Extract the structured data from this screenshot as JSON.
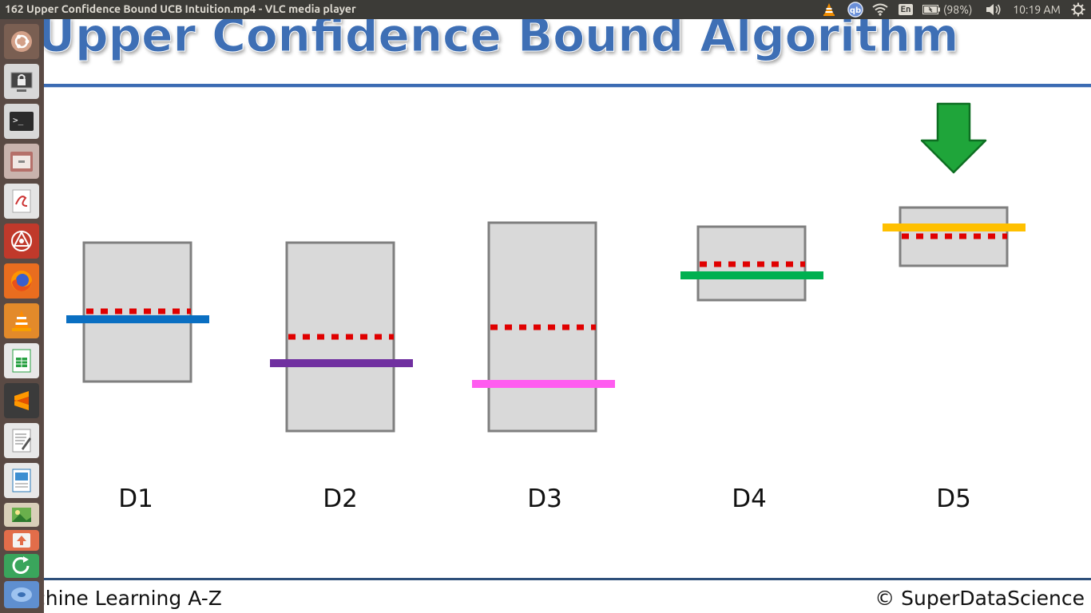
{
  "window": {
    "title": "162 Upper Confidence Bound UCB Intuition.mp4 - VLC media player"
  },
  "top_panel": {
    "keyboard_layout": "En",
    "battery": "(98%)",
    "time": "10:19 AM"
  },
  "launcher": {
    "icons": [
      "ubuntu-dash-icon",
      "lock-screen-icon",
      "terminal-icon",
      "files-icon",
      "evince-icon",
      "scrum-icon",
      "firefox-icon",
      "vlc-icon",
      "spreadsheet-icon",
      "sublime-text-icon",
      "text-editor-icon",
      "document-viewer-icon",
      "image-viewer-icon",
      "software-updater-icon"
    ]
  },
  "slide": {
    "title": "Upper Confidence Bound Algorithm",
    "footer_left": "chine Learning A-Z",
    "footer_right": "© SuperDataScience",
    "colors": {
      "title": "#3e6fb5",
      "box_fill": "#d9d9d9",
      "box_stroke": "#7f7f7f",
      "dotted": "#e00000",
      "arrow": "#1fa53a"
    },
    "bandits": [
      {
        "label": "D1",
        "line_color": "#0a6fc2"
      },
      {
        "label": "D2",
        "line_color": "#7030a0"
      },
      {
        "label": "D3",
        "line_color": "#ff5cf0"
      },
      {
        "label": "D4",
        "line_color": "#00b050"
      },
      {
        "label": "D5",
        "line_color": "#ffc000"
      }
    ],
    "selected_bandit": "D5"
  }
}
